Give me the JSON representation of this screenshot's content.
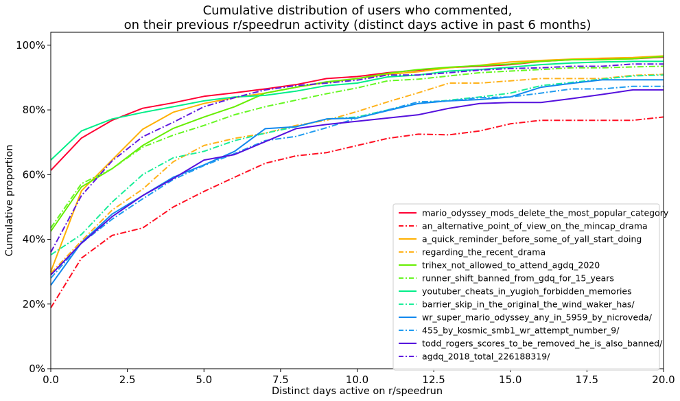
{
  "chart_data": {
    "type": "line",
    "title": "Cumulative distribution of users who commented,\non their previous r/speedrun activity (distinct days active in past 6 months)",
    "xlabel": "Distinct days active on r/speedrun",
    "ylabel": "Cumulative proportion",
    "xlim": [
      0,
      20
    ],
    "ylim": [
      0,
      1.04
    ],
    "x_ticks": [
      0,
      2.5,
      5,
      7.5,
      10,
      12.5,
      15,
      17.5,
      20
    ],
    "x_tick_labels": [
      "0.0",
      "2.5",
      "5.0",
      "7.5",
      "10.0",
      "12.5",
      "15.0",
      "17.5",
      "20.0"
    ],
    "y_ticks": [
      0,
      0.2,
      0.4,
      0.6,
      0.8,
      1.0
    ],
    "y_tick_labels": [
      "0%",
      "20%",
      "40%",
      "60%",
      "80%",
      "100%"
    ],
    "grid": false,
    "legend_position": "lower right",
    "x": [
      0,
      1,
      2,
      3,
      4,
      5,
      6,
      7,
      8,
      9,
      10,
      11,
      12,
      13,
      14,
      15,
      16,
      17,
      18,
      19,
      20
    ],
    "series": [
      {
        "name": "mario_odyssey_mods_delete_the_most_popular_category",
        "color": "#ff0033",
        "style": "solid",
        "values": [
          0.613,
          0.713,
          0.768,
          0.805,
          0.822,
          0.842,
          0.853,
          0.865,
          0.878,
          0.897,
          0.903,
          0.915,
          0.923,
          0.931,
          0.935,
          0.94,
          0.95,
          0.955,
          0.957,
          0.958,
          0.963
        ]
      },
      {
        "name": "an_alternative_point_of_view_on_the_mincap_drama",
        "color": "#ff0f22",
        "style": "dashdot",
        "values": [
          0.188,
          0.342,
          0.412,
          0.435,
          0.5,
          0.548,
          0.592,
          0.635,
          0.658,
          0.668,
          0.69,
          0.712,
          0.725,
          0.723,
          0.735,
          0.757,
          0.768,
          0.768,
          0.768,
          0.768,
          0.778
        ]
      },
      {
        "name": "a_quick_reminder_before_some_of_yall_start_doing",
        "color": "#ffb000",
        "style": "solid",
        "values": [
          0.3,
          0.55,
          0.645,
          0.74,
          0.793,
          0.82,
          0.838,
          0.852,
          0.87,
          0.885,
          0.897,
          0.91,
          0.918,
          0.93,
          0.938,
          0.948,
          0.953,
          0.957,
          0.96,
          0.962,
          0.967
        ]
      },
      {
        "name": "regarding_the_recent_drama",
        "color": "#ffb21a",
        "style": "dashdot",
        "values": [
          0.295,
          0.395,
          0.49,
          0.555,
          0.64,
          0.69,
          0.712,
          0.728,
          0.752,
          0.768,
          0.795,
          0.825,
          0.853,
          0.883,
          0.883,
          0.89,
          0.897,
          0.897,
          0.897,
          0.907,
          0.91
        ]
      },
      {
        "name": "trihex_not_allowed_to_attend_agdq_2020",
        "color": "#66ee00",
        "style": "solid",
        "values": [
          0.425,
          0.562,
          0.618,
          0.69,
          0.743,
          0.778,
          0.81,
          0.852,
          0.87,
          0.887,
          0.897,
          0.913,
          0.925,
          0.932,
          0.937,
          0.942,
          0.95,
          0.955,
          0.955,
          0.958,
          0.965
        ]
      },
      {
        "name": "runner_shift_banned_from_gdq_for_15_years",
        "color": "#66f722",
        "style": "dashdot",
        "values": [
          0.435,
          0.572,
          0.618,
          0.685,
          0.722,
          0.752,
          0.785,
          0.81,
          0.83,
          0.85,
          0.868,
          0.89,
          0.895,
          0.905,
          0.915,
          0.92,
          0.925,
          0.93,
          0.93,
          0.933,
          0.935
        ]
      },
      {
        "name": "youtuber_cheats_in_yugioh_forbidden_memories",
        "color": "#00ee88",
        "style": "solid",
        "values": [
          0.645,
          0.735,
          0.772,
          0.792,
          0.81,
          0.828,
          0.84,
          0.845,
          0.858,
          0.875,
          0.883,
          0.902,
          0.908,
          0.92,
          0.925,
          0.932,
          0.94,
          0.945,
          0.948,
          0.95,
          0.95
        ]
      },
      {
        "name": "barrier_skip_in_the_original_the_wind_waker_has/",
        "color": "#1aee99",
        "style": "dashdot",
        "values": [
          0.352,
          0.415,
          0.515,
          0.6,
          0.652,
          0.672,
          0.705,
          0.728,
          0.748,
          0.772,
          0.778,
          0.8,
          0.82,
          0.83,
          0.84,
          0.852,
          0.875,
          0.885,
          0.895,
          0.905,
          0.908
        ]
      },
      {
        "name": "wr_super_mario_odyssey_any_in_5959_by_nicroveda/",
        "color": "#1188ee",
        "style": "solid",
        "values": [
          0.258,
          0.39,
          0.478,
          0.535,
          0.592,
          0.63,
          0.672,
          0.742,
          0.748,
          0.772,
          0.775,
          0.798,
          0.82,
          0.828,
          0.832,
          0.84,
          0.87,
          0.882,
          0.893,
          0.893,
          0.893
        ]
      },
      {
        "name": "455_by_kosmic_smb1_wr_attempt_number_9/",
        "color": "#1f9bf0",
        "style": "dashdot",
        "values": [
          0.28,
          0.388,
          0.462,
          0.525,
          0.585,
          0.628,
          0.665,
          0.705,
          0.718,
          0.745,
          0.775,
          0.8,
          0.825,
          0.828,
          0.838,
          0.84,
          0.852,
          0.865,
          0.865,
          0.873,
          0.873
        ]
      },
      {
        "name": "todd_rogers_scores_to_be_removed_he_is_also_banned/",
        "color": "#5511dd",
        "style": "solid",
        "values": [
          0.29,
          0.388,
          0.47,
          0.535,
          0.588,
          0.645,
          0.662,
          0.702,
          0.742,
          0.755,
          0.765,
          0.775,
          0.785,
          0.805,
          0.82,
          0.823,
          0.823,
          0.835,
          0.848,
          0.862,
          0.862
        ]
      },
      {
        "name": "agdq_2018_total_226188319/",
        "color": "#5f1ae0",
        "style": "dashdot",
        "values": [
          0.36,
          0.535,
          0.642,
          0.717,
          0.762,
          0.81,
          0.838,
          0.862,
          0.875,
          0.883,
          0.892,
          0.908,
          0.908,
          0.915,
          0.923,
          0.928,
          0.93,
          0.935,
          0.935,
          0.942,
          0.942
        ]
      }
    ]
  }
}
